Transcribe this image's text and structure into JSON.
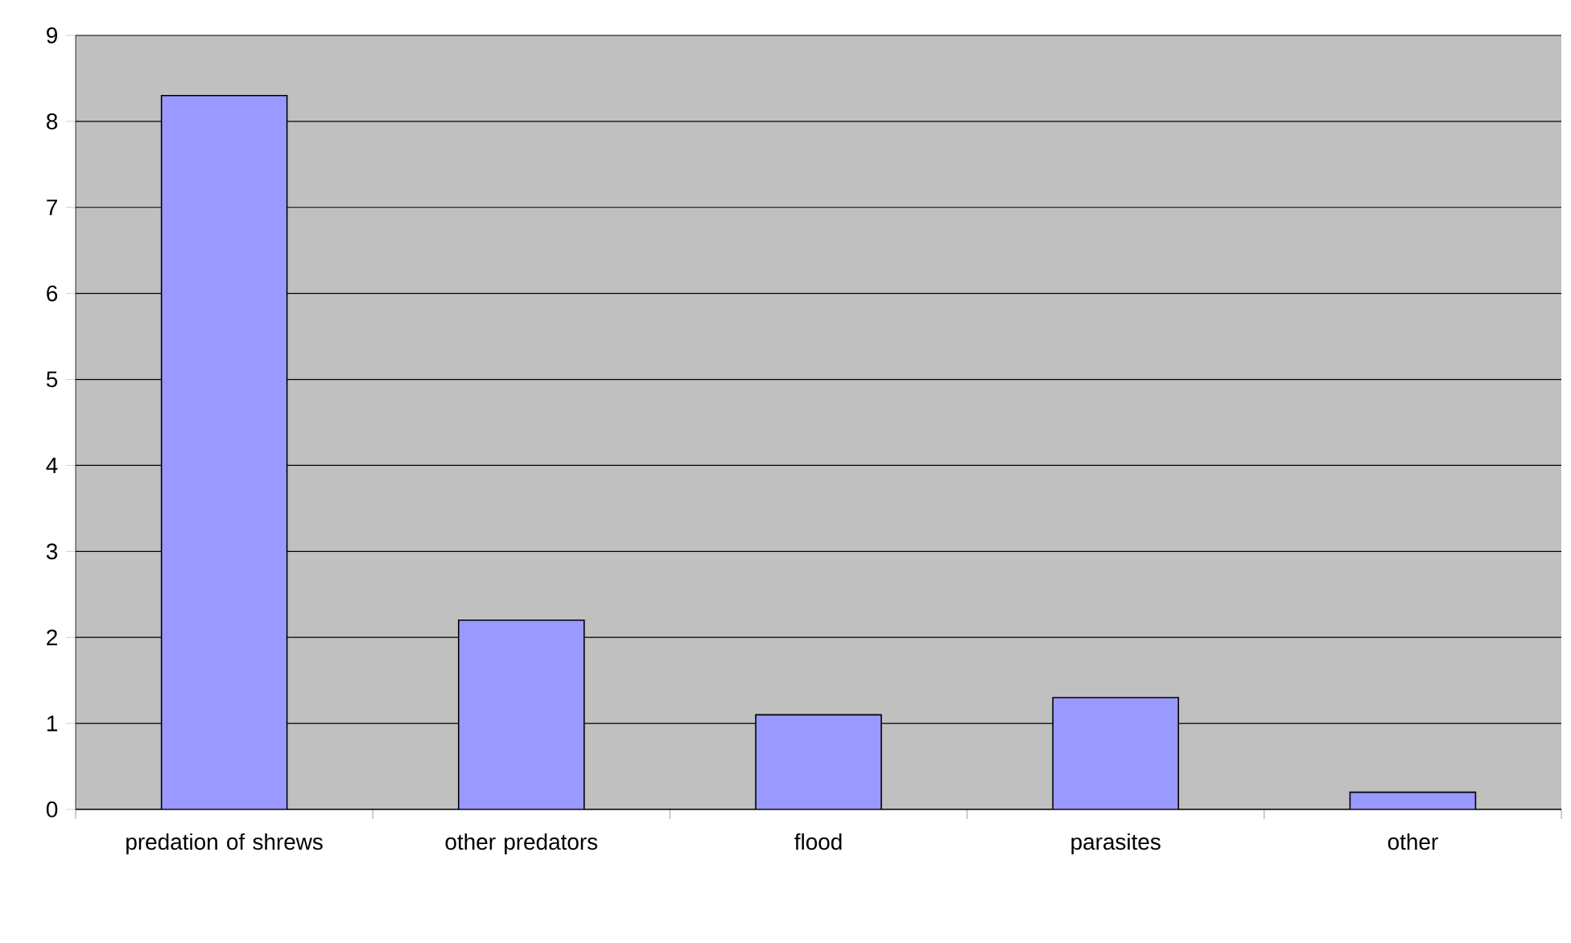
{
  "chart_data": {
    "type": "bar",
    "categories": [
      "predation of shrews",
      "other predators",
      "flood",
      "parasites",
      "other"
    ],
    "values": [
      8.3,
      2.2,
      1.1,
      1.3,
      0.2
    ],
    "color": "#9999ff",
    "ylim": [
      0,
      9
    ],
    "yticks": [
      0,
      1,
      2,
      3,
      4,
      5,
      6,
      7,
      8,
      9
    ],
    "grid": "y"
  }
}
